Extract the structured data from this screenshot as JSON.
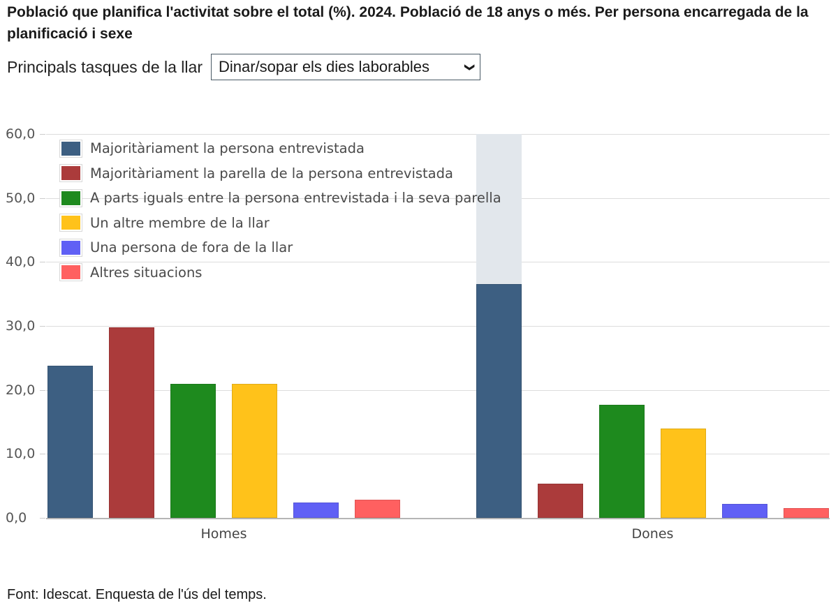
{
  "title": "Població que planifica l'activitat sobre el total (%). 2024. Població de 18 anys o més. Per persona encarregada de la planificació i sexe",
  "filter": {
    "label": "Principals tasques de la llar",
    "selected": "Dinar/sopar els dies laborables",
    "chevron_icon": "chevron-down-icon"
  },
  "source": "Font: Idescat. Enquesta de l'ús del temps.",
  "y_ticks": [
    "0,0",
    "10,0",
    "20,0",
    "30,0",
    "40,0",
    "50,0",
    "60,0"
  ],
  "legend": [
    {
      "label": "Majoritàriament la persona entrevistada",
      "color": "#3d5f82"
    },
    {
      "label": "Majoritàriament la parella de la persona entrevistada",
      "color": "#ab3b3b"
    },
    {
      "label": "A parts iguals entre la persona entrevistada i la seva parella",
      "color": "#1e8a1e"
    },
    {
      "label": "Un altre membre de la llar",
      "color": "#ffc21a"
    },
    {
      "label": "Una persona de fora de la llar",
      "color": "#6060f5"
    },
    {
      "label": "Altres situacions",
      "color": "#ff6060"
    }
  ],
  "hover_highlight": {
    "category": "Dones",
    "series": "Majoritàriament la persona entrevistada",
    "color": "#e2e7ec"
  },
  "chart_data": {
    "type": "bar",
    "title": "Població que planifica l'activitat sobre el total (%). 2024. Població de 18 anys o més. Per persona encarregada de la planificació i sexe",
    "subtitle": "Principals tasques de la llar: Dinar/sopar els dies laborables",
    "xlabel": "",
    "ylabel": "",
    "ylim": [
      0,
      60
    ],
    "yticks": [
      0,
      10,
      20,
      30,
      40,
      50,
      60
    ],
    "grid": true,
    "legend_position": "top-left inside",
    "categories": [
      "Homes",
      "Dones"
    ],
    "series": [
      {
        "name": "Majoritàriament la persona entrevistada",
        "color": "#3d5f82",
        "values": [
          23.8,
          36.6
        ]
      },
      {
        "name": "Majoritàriament la parella de la persona entrevistada",
        "color": "#ab3b3b",
        "values": [
          29.8,
          5.4
        ]
      },
      {
        "name": "A parts iguals entre la persona entrevistada i la seva parella",
        "color": "#1e8a1e",
        "values": [
          21.0,
          17.7
        ]
      },
      {
        "name": "Un altre membre de la llar",
        "color": "#ffc21a",
        "values": [
          21.0,
          14.0
        ]
      },
      {
        "name": "Una persona de fora de la llar",
        "color": "#6060f5",
        "values": [
          2.4,
          2.2
        ]
      },
      {
        "name": "Altres situacions",
        "color": "#ff6060",
        "values": [
          2.8,
          1.5
        ]
      }
    ],
    "source": "Font: Idescat. Enquesta de l'ús del temps."
  }
}
